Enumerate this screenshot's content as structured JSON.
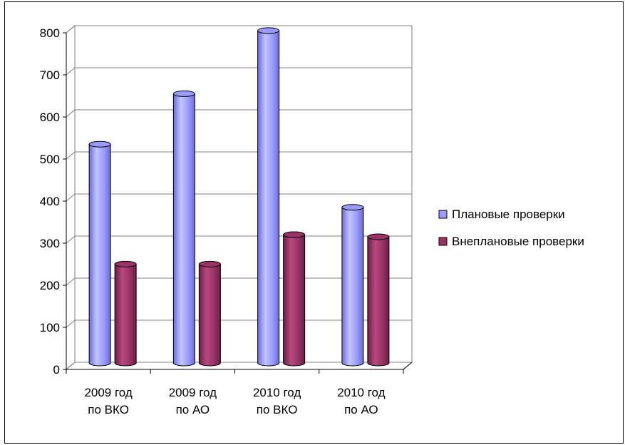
{
  "chart_data": {
    "type": "bar",
    "categories": [
      [
        "2009 год",
        "по ВКО"
      ],
      [
        "2009 год",
        "по АО"
      ],
      [
        "2010 год",
        "по ВКО"
      ],
      [
        "2010 год",
        "по АО"
      ]
    ],
    "series": [
      {
        "name": "Плановые проверки",
        "values": [
          520,
          640,
          790,
          370
        ],
        "color": "#9a9afc",
        "color_dark": "#6b6bd8",
        "color_light": "#c4c4ff"
      },
      {
        "name": "Внеплановые проверки",
        "values": [
          235,
          235,
          305,
          300
        ],
        "color": "#993366",
        "color_dark": "#6a1e44",
        "color_light": "#b84a80"
      }
    ],
    "ylim": [
      0,
      800
    ],
    "yticks": [
      "0",
      "100",
      "200",
      "300",
      "400",
      "500",
      "600",
      "700",
      "800"
    ],
    "grid": true,
    "legend": "right",
    "style": "3d-cylinder"
  }
}
